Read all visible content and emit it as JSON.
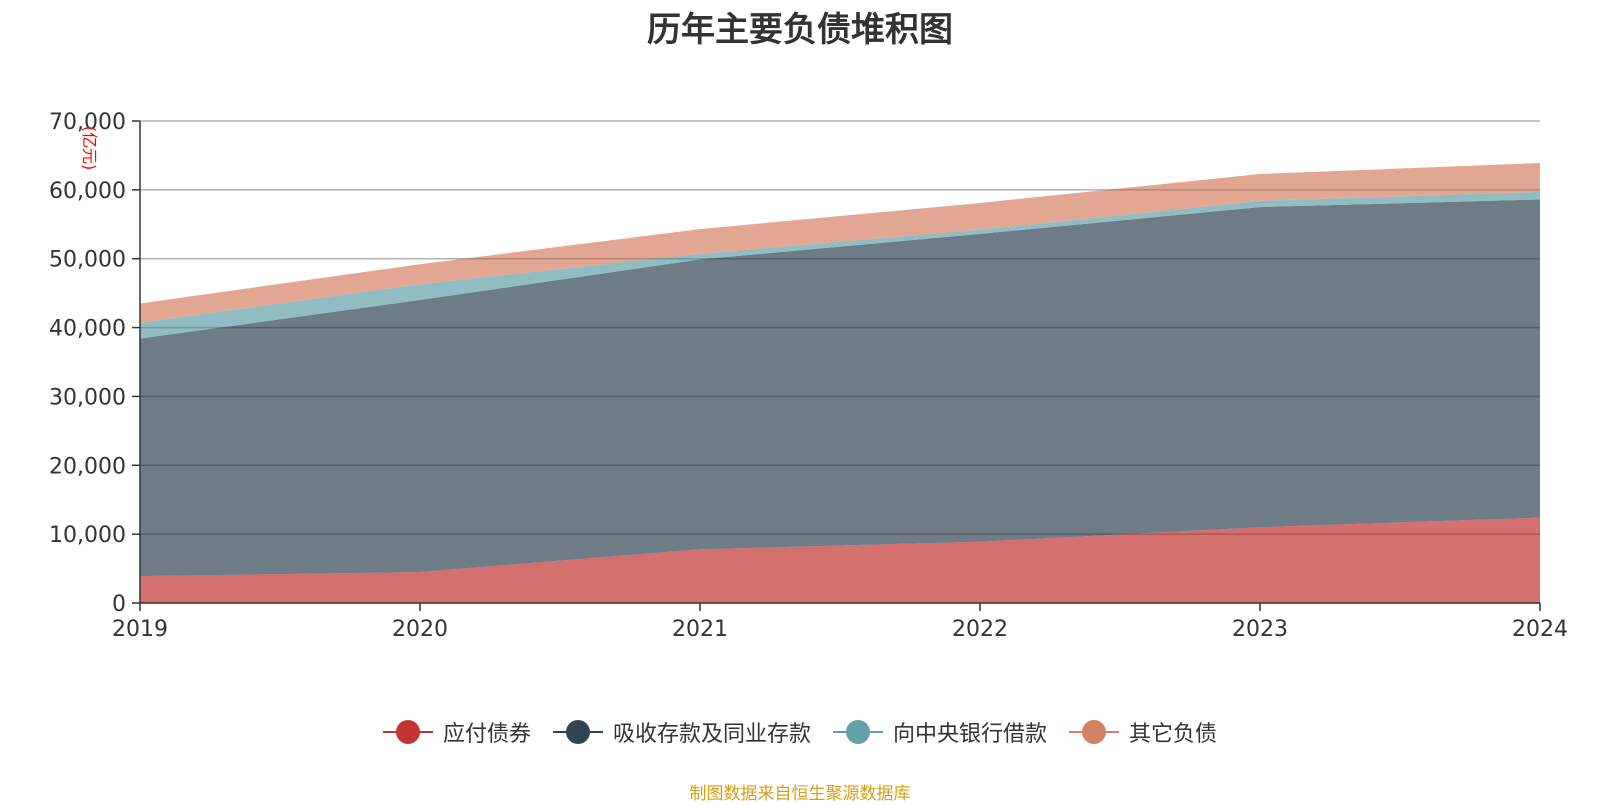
{
  "title": "历年主要负债堆积图",
  "source_note": "制图数据来自恒生聚源数据库",
  "chart_data": {
    "type": "area",
    "stacked": true,
    "x": [
      "2019",
      "2020",
      "2021",
      "2022",
      "2023",
      "2024"
    ],
    "ylabel": "(亿元)",
    "ylim": [
      0,
      70000
    ],
    "yticks": [
      "0",
      "10,000",
      "20,000",
      "30,000",
      "40,000",
      "50,000",
      "60,000",
      "70,000"
    ],
    "grid": true,
    "legend_position": "bottom",
    "series": [
      {
        "name": "应付债券",
        "color": "#c23531",
        "values": [
          3900,
          4500,
          7800,
          8900,
          11000,
          12400
        ]
      },
      {
        "name": "吸收存款及同业存款",
        "color": "#2f4554",
        "values": [
          34500,
          39500,
          42100,
          44700,
          46500,
          46200
        ]
      },
      {
        "name": "向中央银行借款",
        "color": "#61a0a8",
        "values": [
          2300,
          2300,
          800,
          600,
          900,
          1100
        ]
      },
      {
        "name": "其它负债",
        "color": "#d48265",
        "values": [
          2800,
          2900,
          3600,
          3900,
          3900,
          4200
        ]
      }
    ]
  }
}
